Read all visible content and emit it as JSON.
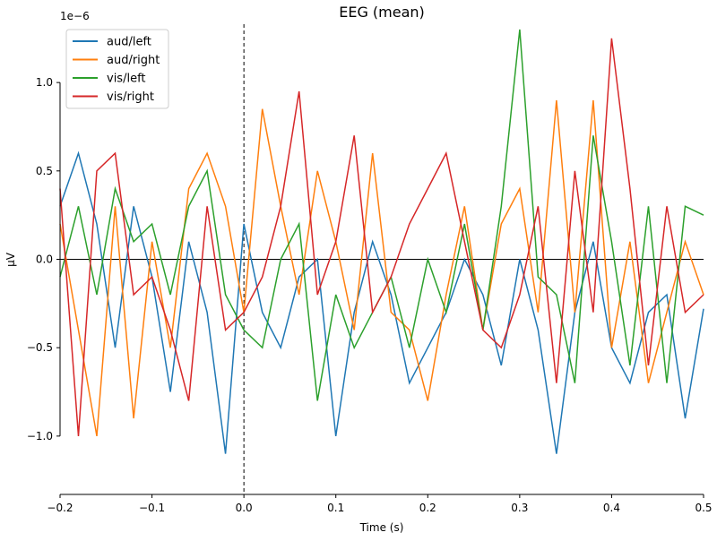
{
  "chart_data": {
    "type": "line",
    "title": "EEG (mean)",
    "xlabel": "Time (s)",
    "ylabel": "µV",
    "y_offset_text": "1e−6",
    "xlim": [
      -0.2,
      0.5
    ],
    "ylim": [
      -1.33,
      1.33
    ],
    "xticks": [
      -0.2,
      -0.1,
      0.0,
      0.1,
      0.2,
      0.3,
      0.4,
      0.5
    ],
    "xtick_labels": [
      "−0.2",
      "−0.1",
      "0.0",
      "0.1",
      "0.2",
      "0.3",
      "0.4",
      "0.5"
    ],
    "yticks": [
      -1.0,
      -0.5,
      0.0,
      0.5,
      1.0
    ],
    "ytick_labels": [
      "−1.0",
      "−0.5",
      "0.0",
      "0.5",
      "1.0"
    ],
    "grid": false,
    "legend_placement": "top-left",
    "reference_lines": {
      "vertical_dashed_at_x": 0.0,
      "horizontal_at_y": 0.0
    },
    "x": [
      -0.2,
      -0.18,
      -0.16,
      -0.14,
      -0.12,
      -0.1,
      -0.08,
      -0.06,
      -0.04,
      -0.02,
      0.0,
      0.02,
      0.04,
      0.06,
      0.08,
      0.1,
      0.12,
      0.14,
      0.16,
      0.18,
      0.2,
      0.22,
      0.24,
      0.26,
      0.28,
      0.3,
      0.32,
      0.34,
      0.36,
      0.38,
      0.4,
      0.42,
      0.44,
      0.46,
      0.48,
      0.5
    ],
    "series": [
      {
        "name": "aud/left",
        "color": "#1f77b4",
        "values": [
          0.3,
          0.6,
          0.2,
          -0.5,
          0.3,
          -0.1,
          -0.75,
          0.1,
          -0.3,
          -1.1,
          0.2,
          -0.3,
          -0.5,
          -0.1,
          0.0,
          -1.0,
          -0.3,
          0.1,
          -0.2,
          -0.7,
          -0.5,
          -0.3,
          0.0,
          -0.2,
          -0.6,
          0.0,
          -0.4,
          -1.1,
          -0.3,
          0.1,
          -0.5,
          -0.7,
          -0.3,
          -0.2,
          -0.9,
          -0.28
        ]
      },
      {
        "name": "aud/right",
        "color": "#ff7f0e",
        "values": [
          0.2,
          -0.4,
          -1.0,
          0.3,
          -0.9,
          0.1,
          -0.5,
          0.4,
          0.6,
          0.3,
          -0.3,
          0.85,
          0.3,
          -0.2,
          0.5,
          0.1,
          -0.4,
          0.6,
          -0.3,
          -0.4,
          -0.8,
          -0.2,
          0.3,
          -0.4,
          0.2,
          0.4,
          -0.3,
          0.9,
          -0.3,
          0.9,
          -0.5,
          0.1,
          -0.7,
          -0.3,
          0.1,
          -0.2
        ]
      },
      {
        "name": "vis/left",
        "color": "#2ca02c",
        "values": [
          -0.1,
          0.3,
          -0.2,
          0.4,
          0.1,
          0.2,
          -0.2,
          0.3,
          0.5,
          -0.2,
          -0.4,
          -0.5,
          0.0,
          0.2,
          -0.8,
          -0.2,
          -0.5,
          -0.3,
          -0.1,
          -0.5,
          0.0,
          -0.3,
          0.2,
          -0.4,
          0.3,
          1.3,
          -0.1,
          -0.2,
          -0.7,
          0.7,
          0.1,
          -0.6,
          0.3,
          -0.7,
          0.3,
          0.25
        ]
      },
      {
        "name": "vis/right",
        "color": "#d62728",
        "values": [
          0.4,
          -1.0,
          0.5,
          0.6,
          -0.2,
          -0.1,
          -0.4,
          -0.8,
          0.3,
          -0.4,
          -0.3,
          -0.1,
          0.3,
          0.95,
          -0.2,
          0.1,
          0.7,
          -0.3,
          -0.1,
          0.2,
          0.4,
          0.6,
          0.1,
          -0.4,
          -0.5,
          -0.2,
          0.3,
          -0.7,
          0.5,
          -0.3,
          1.25,
          0.4,
          -0.6,
          0.3,
          -0.3,
          -0.2
        ]
      }
    ]
  }
}
